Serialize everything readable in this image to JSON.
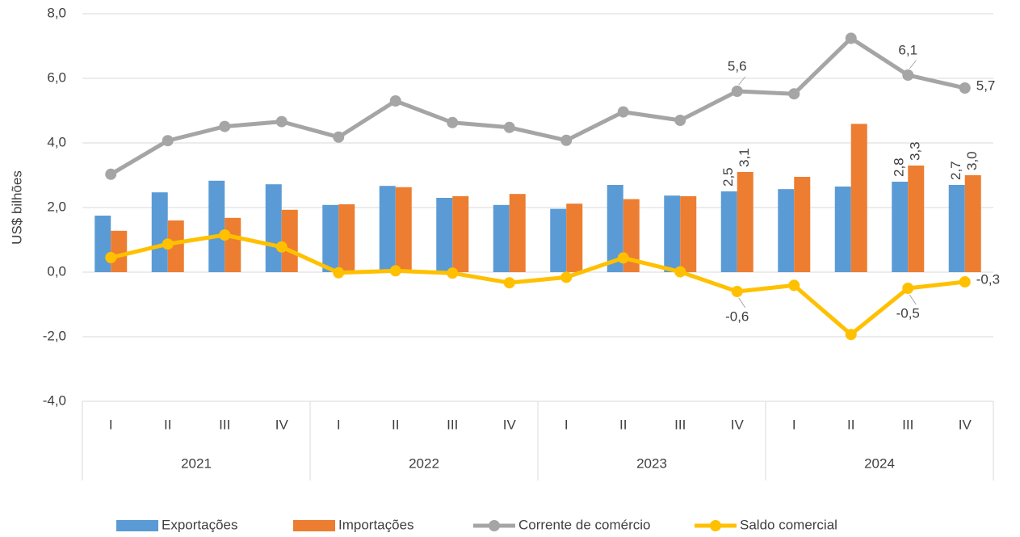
{
  "chart_data": {
    "type": "bar-line",
    "y_label": "US$ bilhões",
    "categories": [
      "I",
      "II",
      "III",
      "IV",
      "I",
      "II",
      "III",
      "IV",
      "I",
      "II",
      "III",
      "IV",
      "I",
      "II",
      "III",
      "IV"
    ],
    "years": [
      "2021",
      "2022",
      "2023",
      "2024"
    ],
    "ylim": [
      -4,
      8
    ],
    "yticks": [
      {
        "value": -4,
        "label": "-4,0"
      },
      {
        "value": -2,
        "label": "-2,0"
      },
      {
        "value": 0,
        "label": "0,0"
      },
      {
        "value": 2,
        "label": "2,0"
      },
      {
        "value": 4,
        "label": "4,0"
      },
      {
        "value": 6,
        "label": "6,0"
      },
      {
        "value": 8,
        "label": "8,0"
      }
    ],
    "grid": true,
    "legend": "bottom",
    "series": [
      {
        "name": "Exportações",
        "type": "bar",
        "color": "#5b9bd5",
        "values": [
          1.75,
          2.47,
          2.83,
          2.72,
          2.08,
          2.67,
          2.3,
          2.08,
          1.96,
          2.7,
          2.37,
          2.5,
          2.57,
          2.65,
          2.8,
          2.7
        ],
        "value_labels": [
          null,
          null,
          null,
          null,
          null,
          null,
          null,
          null,
          null,
          null,
          null,
          "2,5",
          null,
          null,
          "2,8",
          "2,7"
        ]
      },
      {
        "name": "Importações",
        "type": "bar",
        "color": "#ed7d31",
        "values": [
          1.28,
          1.6,
          1.68,
          1.93,
          2.1,
          2.63,
          2.35,
          2.42,
          2.12,
          2.26,
          2.35,
          3.1,
          2.95,
          4.59,
          3.3,
          3.0
        ],
        "value_labels": [
          null,
          null,
          null,
          null,
          null,
          null,
          null,
          null,
          null,
          null,
          null,
          "3,1",
          null,
          null,
          "3,3",
          "3,0"
        ]
      },
      {
        "name": "Corrente de comércio",
        "type": "line",
        "color": "#a5a5a5",
        "values": [
          3.03,
          4.07,
          4.51,
          4.66,
          4.18,
          5.3,
          4.63,
          4.48,
          4.08,
          4.96,
          4.7,
          5.6,
          5.52,
          7.24,
          6.1,
          5.7
        ],
        "value_labels": [
          null,
          null,
          null,
          null,
          null,
          null,
          null,
          null,
          null,
          null,
          null,
          "5,6",
          null,
          null,
          "6,1",
          "5,7"
        ]
      },
      {
        "name": "Saldo comercial",
        "type": "line",
        "color": "#ffc000",
        "values": [
          0.45,
          0.87,
          1.15,
          0.78,
          -0.02,
          0.04,
          -0.03,
          -0.33,
          -0.16,
          0.44,
          0.01,
          -0.6,
          -0.41,
          -1.93,
          -0.5,
          -0.3
        ],
        "value_labels": [
          null,
          null,
          null,
          null,
          null,
          null,
          null,
          null,
          null,
          null,
          null,
          "-0,6",
          null,
          null,
          "-0,5",
          "-0,3"
        ]
      }
    ]
  }
}
